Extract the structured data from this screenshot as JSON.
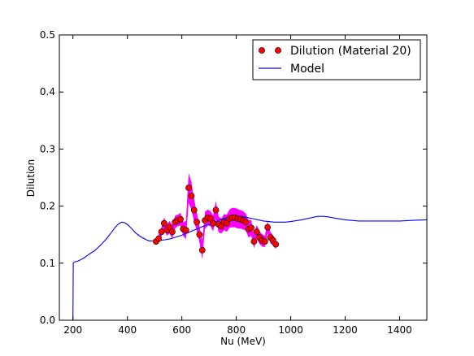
{
  "chart_data": {
    "type": "scatter",
    "title": "",
    "xlabel": "Nu (MeV)",
    "ylabel": "Dilution",
    "xlim": [
      150,
      1500
    ],
    "ylim": [
      0.0,
      0.5
    ],
    "xticks": [
      200,
      400,
      600,
      800,
      1000,
      1200,
      1400
    ],
    "yticks": [
      0.0,
      0.1,
      0.2,
      0.3,
      0.4,
      0.5
    ],
    "xtick_labels": [
      "200",
      "400",
      "600",
      "800",
      "1000",
      "1200",
      "1400"
    ],
    "ytick_labels": [
      "0.0",
      "0.1",
      "0.2",
      "0.3",
      "0.4",
      "0.5"
    ],
    "grid": false,
    "legend_position": "top-right",
    "colors": {
      "points": "#ff0000",
      "band": "#ff00ff",
      "model": "#0000ff"
    },
    "legend": {
      "points_label": "Dilution (Material 20)",
      "model_label": "Model"
    },
    "series": [
      {
        "name": "Dilution (Material 20)",
        "kind": "points_with_error_band",
        "x": [
          505,
          515,
          525,
          535,
          545,
          555,
          565,
          575,
          585,
          595,
          605,
          615,
          625,
          635,
          645,
          655,
          665,
          675,
          685,
          695,
          705,
          715,
          725,
          735,
          745,
          755,
          765,
          775,
          785,
          795,
          805,
          815,
          825,
          835,
          845,
          855,
          865,
          875,
          885,
          895,
          905,
          915,
          925,
          935,
          945
        ],
        "y": [
          0.138,
          0.143,
          0.155,
          0.17,
          0.158,
          0.163,
          0.155,
          0.172,
          0.175,
          0.177,
          0.16,
          0.158,
          0.232,
          0.218,
          0.193,
          0.172,
          0.15,
          0.123,
          0.175,
          0.18,
          0.178,
          0.17,
          0.193,
          0.168,
          0.165,
          0.172,
          0.17,
          0.178,
          0.18,
          0.18,
          0.178,
          0.177,
          0.175,
          0.172,
          0.16,
          0.162,
          0.138,
          0.155,
          0.145,
          0.14,
          0.138,
          0.163,
          0.145,
          0.14,
          0.133
        ],
        "err": [
          0.006,
          0.007,
          0.008,
          0.01,
          0.01,
          0.011,
          0.012,
          0.011,
          0.01,
          0.011,
          0.012,
          0.016,
          0.026,
          0.024,
          0.02,
          0.016,
          0.014,
          0.016,
          0.015,
          0.014,
          0.013,
          0.014,
          0.016,
          0.014,
          0.013,
          0.014,
          0.015,
          0.016,
          0.017,
          0.017,
          0.017,
          0.016,
          0.016,
          0.015,
          0.015,
          0.014,
          0.012,
          0.012,
          0.011,
          0.011,
          0.01,
          0.011,
          0.01,
          0.009,
          0.008
        ]
      },
      {
        "name": "Model",
        "kind": "line",
        "x": [
          200,
          201,
          205,
          220,
          240,
          260,
          280,
          300,
          320,
          340,
          355,
          370,
          380,
          390,
          400,
          415,
          430,
          450,
          470,
          480,
          490,
          500,
          520,
          540,
          560,
          580,
          600,
          620,
          640,
          660,
          680,
          700,
          720,
          740,
          760,
          780,
          800,
          820,
          840,
          860,
          880,
          900,
          920,
          940,
          960,
          980,
          1000,
          1040,
          1080,
          1100,
          1120,
          1140,
          1160,
          1200,
          1250,
          1300,
          1350,
          1400,
          1450,
          1500
        ],
        "y": [
          0.0,
          0.1,
          0.102,
          0.104,
          0.109,
          0.116,
          0.122,
          0.131,
          0.141,
          0.153,
          0.163,
          0.17,
          0.172,
          0.171,
          0.168,
          0.161,
          0.153,
          0.146,
          0.141,
          0.139,
          0.139,
          0.139,
          0.14,
          0.141,
          0.143,
          0.146,
          0.149,
          0.153,
          0.157,
          0.161,
          0.165,
          0.168,
          0.172,
          0.176,
          0.179,
          0.182,
          0.183,
          0.182,
          0.18,
          0.178,
          0.176,
          0.174,
          0.173,
          0.172,
          0.172,
          0.172,
          0.173,
          0.176,
          0.18,
          0.182,
          0.182,
          0.181,
          0.179,
          0.176,
          0.174,
          0.174,
          0.174,
          0.174,
          0.175,
          0.176
        ]
      }
    ]
  }
}
